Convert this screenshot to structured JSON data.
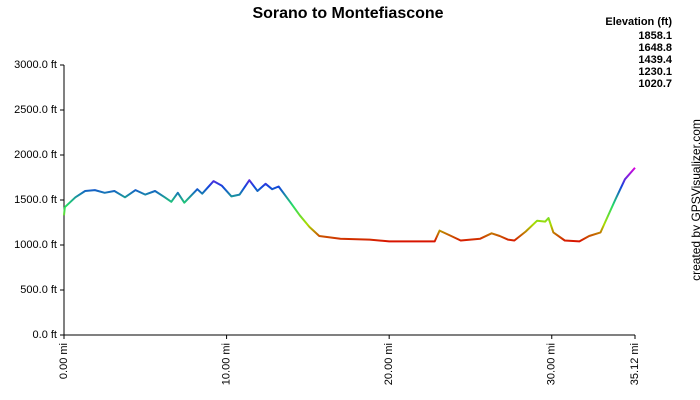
{
  "chart_data": {
    "type": "line",
    "title": "Sorano to Montefiascone",
    "x": [
      0,
      0.05,
      0.7,
      1.3,
      1.9,
      2.5,
      3.1,
      3.75,
      4.4,
      5.0,
      5.6,
      6.2,
      6.6,
      7.0,
      7.4,
      8.2,
      8.5,
      9.2,
      9.7,
      10.3,
      10.8,
      11.4,
      11.9,
      12.4,
      12.8,
      13.2,
      13.9,
      14.5,
      15.1,
      15.7,
      17.0,
      18.8,
      20.0,
      21.9,
      22.8,
      23.1,
      23.7,
      24.4,
      25.6,
      26.3,
      26.8,
      27.3,
      27.7,
      28.4,
      29.1,
      29.6,
      29.8,
      30.1,
      30.8,
      31.7,
      32.3,
      33.0,
      33.9,
      34.5,
      35.12
    ],
    "values": [
      1330,
      1420,
      1530,
      1600,
      1610,
      1580,
      1600,
      1530,
      1610,
      1560,
      1600,
      1530,
      1480,
      1580,
      1470,
      1620,
      1570,
      1710,
      1660,
      1540,
      1560,
      1720,
      1600,
      1680,
      1620,
      1650,
      1480,
      1330,
      1200,
      1100,
      1070,
      1060,
      1040,
      1040,
      1040,
      1160,
      1110,
      1050,
      1070,
      1130,
      1100,
      1060,
      1050,
      1150,
      1270,
      1260,
      1300,
      1140,
      1050,
      1040,
      1100,
      1140,
      1500,
      1730,
      1858.1
    ],
    "xlim": [
      0,
      35.12
    ],
    "ylim": [
      0,
      3000
    ],
    "xticks": [
      {
        "value": 0,
        "label": "0.00 mi"
      },
      {
        "value": 10,
        "label": "10.00 mi"
      },
      {
        "value": 20,
        "label": "20.00 mi"
      },
      {
        "value": 30,
        "label": "30.00 mi"
      },
      {
        "value": 35.12,
        "label": "35.12 mi"
      }
    ],
    "yticks": [
      {
        "value": 0,
        "label": "0.0 ft"
      },
      {
        "value": 500,
        "label": "500.0 ft"
      },
      {
        "value": 1000,
        "label": "1000.0 ft"
      },
      {
        "value": 1500,
        "label": "1500.0 ft"
      },
      {
        "value": 2000,
        "label": "2000.0 ft"
      },
      {
        "value": 2500,
        "label": "2500.0 ft"
      },
      {
        "value": 3000,
        "label": "3000.0 ft"
      }
    ],
    "color_scale": {
      "title": "Elevation (ft)",
      "stops": [
        {
          "value": 1858.1,
          "color": "#dd00dd"
        },
        {
          "value": 1648.8,
          "color": "#1144dd"
        },
        {
          "value": 1439.4,
          "color": "#22dd66"
        },
        {
          "value": 1230.1,
          "color": "#aadd00"
        },
        {
          "value": 1020.7,
          "color": "#dd0000"
        }
      ]
    },
    "credit": "created by GPSVisualizer.com"
  }
}
